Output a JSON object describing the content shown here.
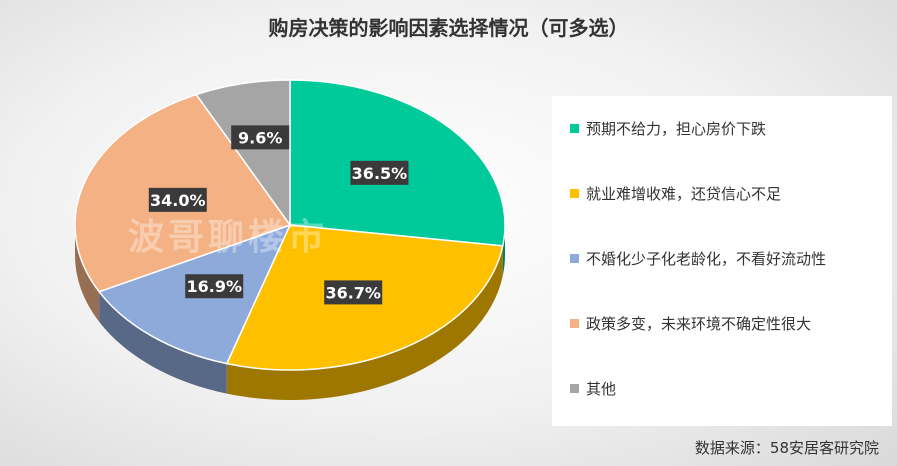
{
  "chart_data": {
    "type": "pie",
    "title": "购房决策的影响因素选择情况（可多选）",
    "categories": [
      "预期不给力，担心房价下跌",
      "就业难增收难，还贷信心不足",
      "不婚化少子化老龄化，不看好流动性",
      "政策多变，未来环境不确定性很大",
      "其他"
    ],
    "values": [
      36.5,
      36.7,
      16.9,
      34.0,
      9.6
    ],
    "labels": [
      "36.5%",
      "36.7%",
      "16.9%",
      "34.0%",
      "9.6%"
    ],
    "colors": [
      "#00c99a",
      "#ffc000",
      "#8eaadb",
      "#f4b183",
      "#a5a5a5"
    ],
    "legend_position": "right"
  },
  "watermark": "波哥聊楼市",
  "source": "数据来源：58安居客研究院"
}
